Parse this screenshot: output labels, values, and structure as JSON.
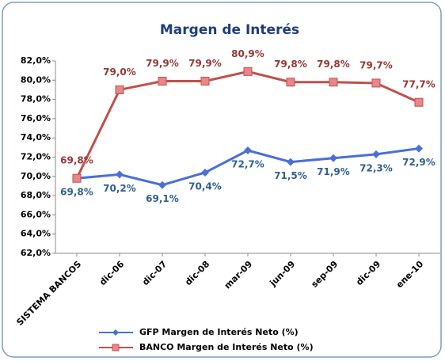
{
  "chart_data": {
    "type": "line",
    "title": "Margen de Interés",
    "categories": [
      "SISTEMA BANCOS",
      "dic-06",
      "dic-07",
      "dic-08",
      "mar-09",
      "jun-09",
      "sep-09",
      "dic-09",
      "ene-10"
    ],
    "series": [
      {
        "name": "GFP Margen de Interés Neto (%)",
        "color": "#4a6fd6",
        "label_color": "#2e6190",
        "marker": "diamond",
        "values": [
          69.8,
          70.2,
          69.1,
          70.4,
          72.7,
          71.5,
          71.9,
          72.3,
          72.9
        ],
        "value_labels": [
          "69,8%",
          "70,2%",
          "69,1%",
          "70,4%",
          "72,7%",
          "71,5%",
          "71,9%",
          "72,3%",
          "72,9%"
        ]
      },
      {
        "name": "BANCO Margen de Interés Neto (%)",
        "color": "#c0504d",
        "label_color": "#953735",
        "marker": "square",
        "values": [
          69.8,
          79.0,
          79.9,
          79.9,
          80.9,
          79.8,
          79.8,
          79.7,
          77.7
        ],
        "value_labels": [
          "69,8%",
          "79,0%",
          "79,9%",
          "79,9%",
          "80,9%",
          "79,8%",
          "79,8%",
          "79,7%",
          "77,7%"
        ]
      }
    ],
    "ylim": [
      62,
      82
    ],
    "yticks": [
      {
        "value": 62,
        "label": "62,0%"
      },
      {
        "value": 64,
        "label": "64,0%"
      },
      {
        "value": 66,
        "label": "66,0%"
      },
      {
        "value": 68,
        "label": "68,0%"
      },
      {
        "value": 70,
        "label": "70,0%"
      },
      {
        "value": 72,
        "label": "72,0%"
      },
      {
        "value": 74,
        "label": "74,0%"
      },
      {
        "value": 76,
        "label": "76,0%"
      },
      {
        "value": 78,
        "label": "78,0%"
      },
      {
        "value": 80,
        "label": "80,0%"
      },
      {
        "value": 82,
        "label": "82,0%"
      }
    ],
    "grid": false,
    "legend": "bottom"
  }
}
